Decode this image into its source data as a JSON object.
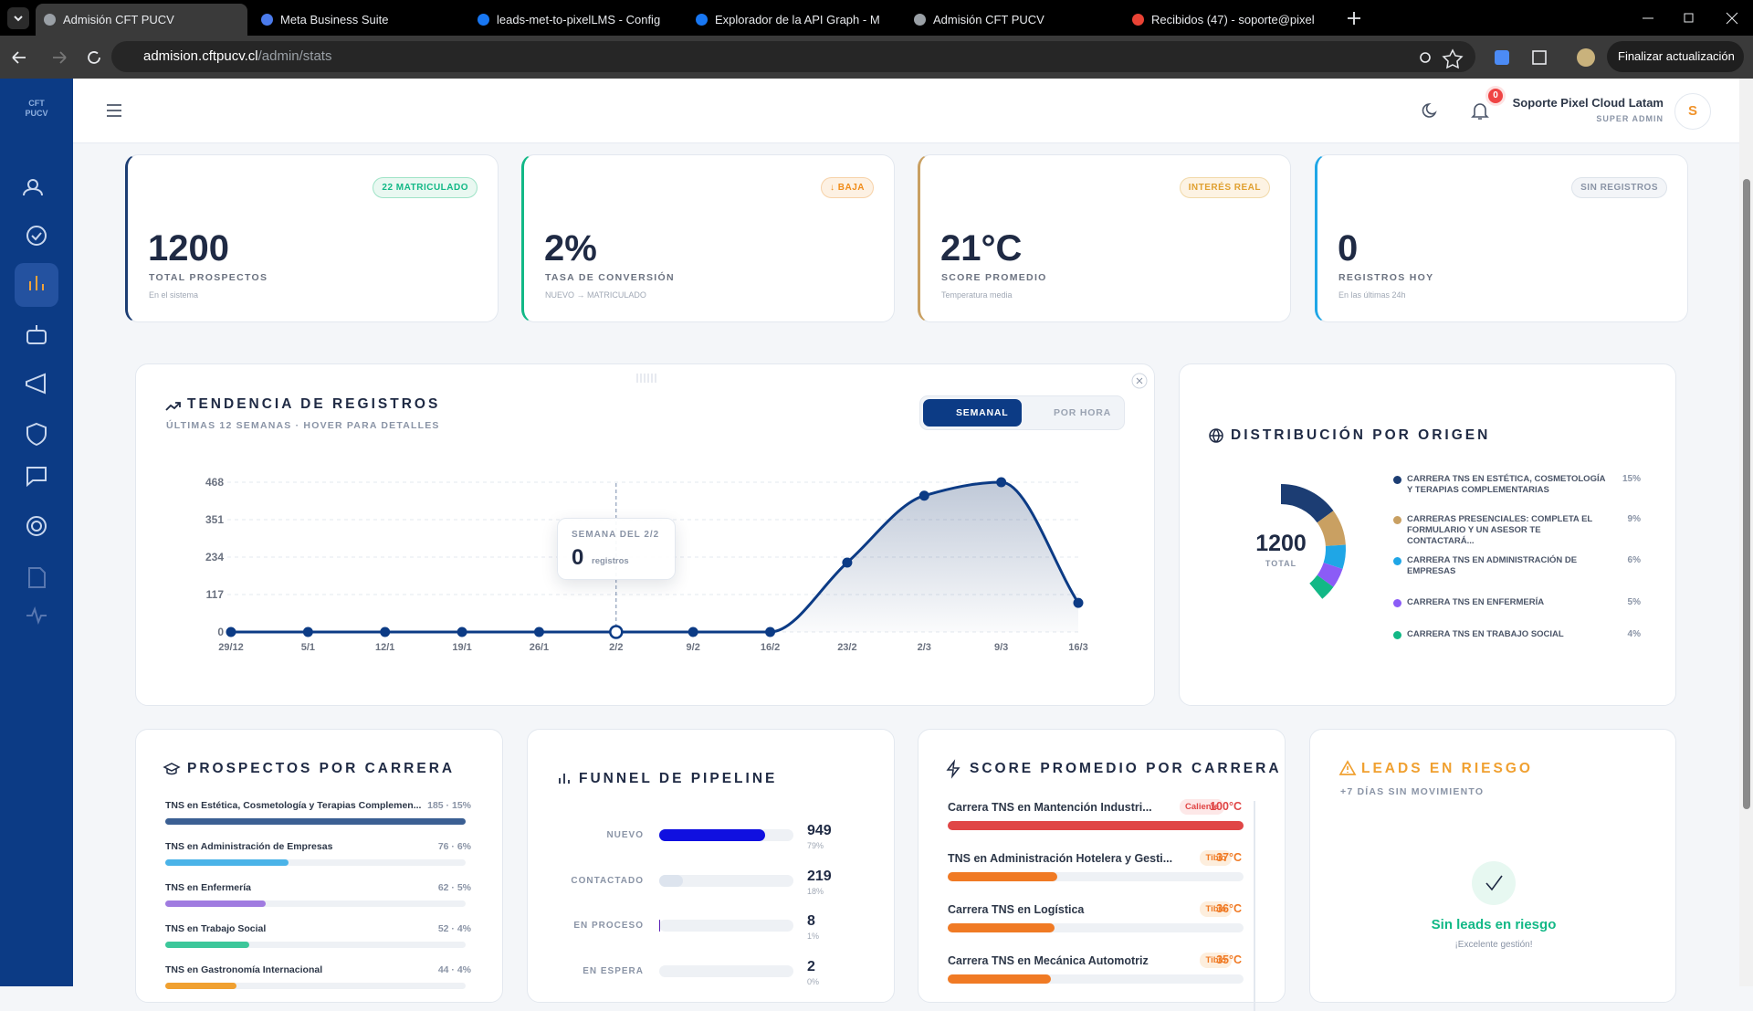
{
  "browser": {
    "tabs": [
      "Admisión CFT PUCV",
      "Meta Business Suite",
      "leads-met-to-pixelLMS - Config",
      "Explorador de la API Graph - M",
      "Admisión CFT PUCV",
      "Recibidos (47) - soporte@pixel"
    ],
    "url_host": "admision.cftpucv.cl",
    "url_path": "/admin/stats",
    "update_button": "Finalizar actualización"
  },
  "sidebar": {
    "logo": [
      "CFT",
      "PUCV"
    ]
  },
  "header": {
    "notifications": 0,
    "user_name": "Soporte Pixel Cloud Latam",
    "user_role": "SUPER ADMIN",
    "avatar": "S"
  },
  "stats": [
    {
      "badge": "22 MATRICULADO",
      "value": 1200,
      "label": "TOTAL PROSPECTOS",
      "note": "En el sistema"
    },
    {
      "badge": "↓ BAJA",
      "value": "2%",
      "label": "TASA DE CONVERSIÓN",
      "note": "NUEVO → MATRICULADO"
    },
    {
      "badge": "INTERÉS REAL",
      "value": "21°C",
      "label": "SCORE PROMEDIO",
      "note": "Temperatura media"
    },
    {
      "badge": "SIN REGISTROS",
      "value": 0,
      "label": "REGISTROS HOY",
      "note": "En las últimas 24h"
    }
  ],
  "trend": {
    "title": "TENDENCIA DE REGISTROS",
    "subtitle": "ÚLTIMAS 12 SEMANAS · HOVER PARA DETALLES",
    "toggle": [
      "SEMANAL",
      "POR HORA"
    ],
    "categories": [
      "29/12",
      "5/1",
      "12/1",
      "19/1",
      "26/1",
      "2/2",
      "9/2",
      "16/2",
      "23/2",
      "2/3",
      "9/3",
      "16/3"
    ],
    "values": [
      0,
      0,
      0,
      0,
      0,
      0,
      0,
      0,
      217,
      426,
      468,
      91
    ],
    "ylim": [
      0,
      468
    ],
    "yticks": [
      0,
      117,
      234,
      351,
      468
    ],
    "tooltip": {
      "title": "SEMANA DEL 2/2",
      "value": 0,
      "unit": "registros"
    }
  },
  "origin": {
    "title": "DISTRIBUCIÓN POR ORIGEN",
    "total": 1200,
    "total_label": "TOTAL",
    "items": [
      {
        "name": "CARRERA TNS EN ESTÉTICA, COSMETOLOGÍA Y TERAPIAS COMPLEMENTARIAS",
        "pct": 15,
        "pct_label": "15%",
        "color": "#1c3d73"
      },
      {
        "name": "CARRERAS PRESENCIALES: COMPLETA EL FORMULARIO Y UN ASESOR TE CONTACTARÁ...",
        "pct": 9,
        "pct_label": "9%",
        "color": "#c9a062"
      },
      {
        "name": "CARRERA TNS EN ADMINISTRACIÓN DE EMPRESAS",
        "pct": 6,
        "pct_label": "6%",
        "color": "#1fa6e6"
      },
      {
        "name": "CARRERA TNS EN ENFERMERÍA",
        "pct": 5,
        "pct_label": "5%",
        "color": "#8b5cf6"
      },
      {
        "name": "CARRERA TNS EN TRABAJO SOCIAL",
        "pct": 4,
        "pct_label": "4%",
        "color": "#12b886"
      }
    ]
  },
  "careers": {
    "title": "PROSPECTOS POR CARRERA",
    "items": [
      {
        "name": "TNS en Estética, Cosmetología y Terapias Complemen...",
        "count": 185,
        "pct": 15,
        "label": "185 · 15%",
        "color": "#3b5f93"
      },
      {
        "name": "TNS en Administración de Empresas",
        "count": 76,
        "pct": 6,
        "label": "76 · 6%",
        "color": "#4ab3e8"
      },
      {
        "name": "TNS en Enfermería",
        "count": 62,
        "pct": 5,
        "label": "62 · 5%",
        "color": "#a07be0"
      },
      {
        "name": "TNS en Trabajo Social",
        "count": 52,
        "pct": 4,
        "label": "52 · 4%",
        "color": "#3cc79a"
      },
      {
        "name": "TNS en Gastronomía Internacional",
        "count": 44,
        "pct": 4,
        "label": "44 · 4%",
        "color": "#f0a030"
      }
    ]
  },
  "funnel": {
    "title": "FUNNEL DE PIPELINE",
    "stages": [
      {
        "name": "NUEVO",
        "count": 949,
        "pct": 79,
        "pct_label": "79%",
        "color": "#1010e0"
      },
      {
        "name": "CONTACTADO",
        "count": 219,
        "pct": 18,
        "pct_label": "18%",
        "color": "#dde4ee"
      },
      {
        "name": "EN PROCESO",
        "count": 8,
        "pct": 1,
        "pct_label": "1%",
        "color": "#5b21b6"
      },
      {
        "name": "EN ESPERA",
        "count": 2,
        "pct": 0,
        "pct_label": "0%",
        "color": "#94a3b8"
      }
    ]
  },
  "scores": {
    "title": "SCORE PROMEDIO POR CARRERA",
    "items": [
      {
        "name": "Carrera TNS en Mantención Industri...",
        "tag": "Caliente",
        "score": 100,
        "score_label": "100°C",
        "color": "#e04646",
        "tag_bg": "#fde8e8"
      },
      {
        "name": "TNS en Administración Hotelera y Gesti...",
        "tag": "Tibio",
        "score": 37,
        "score_label": "37°C",
        "color": "#f07a24",
        "tag_bg": "#fdeedd"
      },
      {
        "name": "Carrera TNS en Logística",
        "tag": "Tibio",
        "score": 36,
        "score_label": "36°C",
        "color": "#f07a24",
        "tag_bg": "#fdeedd"
      },
      {
        "name": "Carrera TNS en Mecánica Automotriz",
        "tag": "Tibio",
        "score": 35,
        "score_label": "35°C",
        "color": "#f07a24",
        "tag_bg": "#fdeedd"
      }
    ]
  },
  "risk": {
    "title": "LEADS EN RIESGO",
    "subtitle": "+7 DÍAS SIN MOVIMIENTO",
    "empty_title": "Sin leads en riesgo",
    "empty_note": "¡Excelente gestión!"
  }
}
